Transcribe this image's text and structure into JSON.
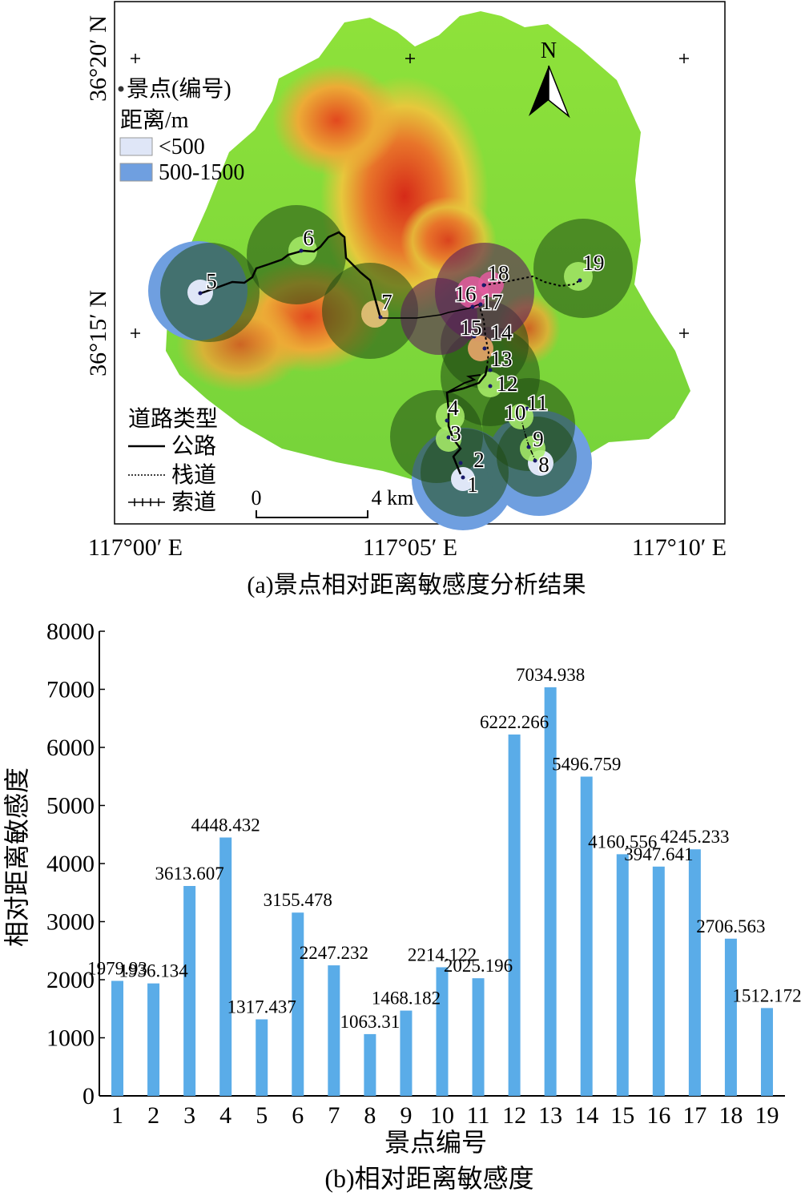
{
  "map": {
    "caption": "(a)景点相对距离敏感度分析结果",
    "lat_labels": [
      "36°20′ N",
      "36°15′ N"
    ],
    "lon_labels": [
      "117°00′ E",
      "117°05′ E",
      "117°10′ E"
    ],
    "north_label": "N",
    "legend": {
      "point_label": "景点(编号)",
      "distance_title": "距离/m",
      "items": [
        {
          "label": "<500",
          "color": "#dfe6f7"
        },
        {
          "label": "500-1500",
          "color": "#6f9fe0"
        }
      ]
    },
    "road_legend": {
      "title": "道路类型",
      "items": [
        {
          "label": "公路",
          "style": "solid"
        },
        {
          "label": "栈道",
          "style": "dotted"
        },
        {
          "label": "索道",
          "style": "cable"
        }
      ]
    },
    "scale": {
      "start": "0",
      "end": "4 km"
    },
    "spots": [
      {
        "id": "1"
      },
      {
        "id": "2"
      },
      {
        "id": "3"
      },
      {
        "id": "4"
      },
      {
        "id": "5"
      },
      {
        "id": "6"
      },
      {
        "id": "7"
      },
      {
        "id": "8"
      },
      {
        "id": "9"
      },
      {
        "id": "10"
      },
      {
        "id": "11"
      },
      {
        "id": "12"
      },
      {
        "id": "13"
      },
      {
        "id": "14"
      },
      {
        "id": "15"
      },
      {
        "id": "16"
      },
      {
        "id": "17"
      },
      {
        "id": "18"
      },
      {
        "id": "19"
      }
    ],
    "colors": {
      "low": "#7fd93a",
      "mid": "#f2d33a",
      "high": "#e03a1e",
      "buffer_inner": "#dfe6f7",
      "buffer_outer": "#6f9fe0"
    }
  },
  "chart_data": {
    "type": "bar",
    "categories": [
      "1",
      "2",
      "3",
      "4",
      "5",
      "6",
      "7",
      "8",
      "9",
      "10",
      "11",
      "12",
      "13",
      "14",
      "15",
      "16",
      "17",
      "18",
      "19"
    ],
    "values": [
      1979.93,
      1936.134,
      3613.607,
      4448.432,
      1317.437,
      3155.478,
      2247.232,
      1063.31,
      1468.182,
      2214.122,
      2025.196,
      6222.266,
      7034.938,
      5496.759,
      4160.556,
      3947.641,
      4245.233,
      2706.563,
      1512.172
    ],
    "data_labels": [
      "1979.93",
      "1936.134",
      "3613.607",
      "4448.432",
      "1317.437",
      "3155.478",
      "2247.232",
      "1063.31",
      "1468.182",
      "2214.122",
      "2025.196",
      "6222.266",
      "7034.938",
      "5496.759",
      "4160.556",
      "3947.641",
      "4245.233",
      "2706.563",
      "1512.172"
    ],
    "xlabel": "景点编号",
    "ylabel": "相对距离敏感度",
    "ylim": [
      0,
      8000
    ],
    "yticks": [
      0,
      1000,
      2000,
      3000,
      4000,
      5000,
      6000,
      7000,
      8000
    ],
    "bar_color": "#5aace8",
    "grid": false,
    "caption": "(b)相对距离敏感度"
  }
}
